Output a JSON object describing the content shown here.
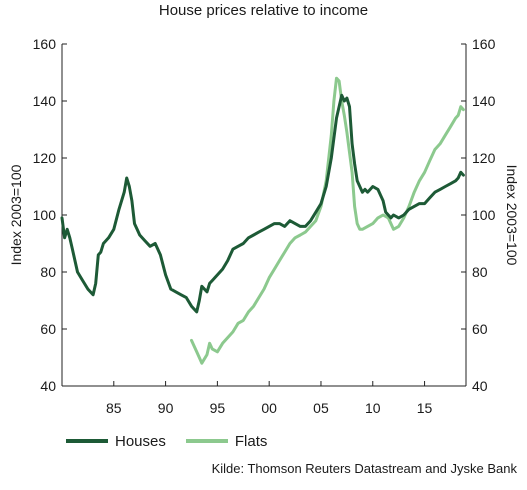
{
  "chart_data": {
    "type": "line",
    "title": "House prices relative to income",
    "ylabel_left": "Index 2003=100",
    "ylabel_right": "Index 2003=100",
    "source": "Kilde: Thomson Reuters Datastream and Jyske Bank",
    "xlim": [
      1980,
      2019
    ],
    "ylim": [
      40,
      160
    ],
    "x_ticks": [
      {
        "value": 1985,
        "label": "85"
      },
      {
        "value": 1990,
        "label": "90"
      },
      {
        "value": 1995,
        "label": "95"
      },
      {
        "value": 2000,
        "label": "00"
      },
      {
        "value": 2005,
        "label": "05"
      },
      {
        "value": 2010,
        "label": "10"
      },
      {
        "value": 2015,
        "label": "15"
      }
    ],
    "y_ticks": [
      40,
      60,
      80,
      100,
      120,
      140,
      160
    ],
    "grid": false,
    "legend_position": "bottom-left",
    "series": [
      {
        "name": "Houses",
        "color": "#1d5a36",
        "x": [
          1980.0,
          1980.25,
          1980.5,
          1980.75,
          1981.0,
          1981.5,
          1982.0,
          1982.5,
          1983.0,
          1983.25,
          1983.5,
          1983.75,
          1984.0,
          1984.5,
          1985.0,
          1985.5,
          1986.0,
          1986.25,
          1986.5,
          1986.75,
          1987.0,
          1987.25,
          1987.5,
          1988.0,
          1988.5,
          1989.0,
          1989.5,
          1990.0,
          1990.5,
          1991.0,
          1991.5,
          1992.0,
          1992.5,
          1993.0,
          1993.25,
          1993.5,
          1994.0,
          1994.25,
          1994.5,
          1995.0,
          1995.5,
          1996.0,
          1996.5,
          1997.0,
          1997.5,
          1998.0,
          1998.5,
          1999.0,
          1999.5,
          2000.0,
          2000.5,
          2001.0,
          2001.5,
          2002.0,
          2002.5,
          2003.0,
          2003.5,
          2004.0,
          2004.5,
          2005.0,
          2005.5,
          2006.0,
          2006.5,
          2007.0,
          2007.25,
          2007.5,
          2007.75,
          2008.0,
          2008.25,
          2008.5,
          2008.75,
          2009.0,
          2009.25,
          2009.5,
          2010.0,
          2010.5,
          2011.0,
          2011.25,
          2011.5,
          2011.75,
          2012.0,
          2012.5,
          2013.0,
          2013.5,
          2014.0,
          2014.5,
          2015.0,
          2015.5,
          2016.0,
          2016.5,
          2017.0,
          2017.5,
          2018.0,
          2018.25,
          2018.5,
          2018.75
        ],
        "values": [
          99,
          92,
          95,
          92,
          88,
          80,
          77,
          74,
          72,
          76,
          86,
          87,
          90,
          92,
          95,
          102,
          108,
          113,
          110,
          105,
          97,
          95,
          93,
          91,
          89,
          90,
          86,
          79,
          74,
          73,
          72,
          71,
          68,
          66,
          70,
          75,
          73,
          76,
          77,
          79,
          81,
          84,
          88,
          89,
          90,
          92,
          93,
          94,
          95,
          96,
          97,
          97,
          96,
          98,
          97,
          96,
          96,
          98,
          101,
          104,
          110,
          120,
          134,
          142,
          140,
          141,
          138,
          125,
          118,
          112,
          110,
          108,
          109,
          108,
          110,
          109,
          105,
          101,
          100,
          99,
          100,
          99,
          100,
          102,
          103,
          104,
          104,
          106,
          108,
          109,
          110,
          111,
          112,
          113,
          115,
          114
        ]
      },
      {
        "name": "Flats",
        "color": "#8cc98e",
        "x": [
          1992.5,
          1993.0,
          1993.25,
          1993.5,
          1994.0,
          1994.25,
          1994.5,
          1995.0,
          1995.5,
          1996.0,
          1996.5,
          1997.0,
          1997.5,
          1998.0,
          1998.5,
          1999.0,
          1999.5,
          2000.0,
          2000.5,
          2001.0,
          2001.5,
          2002.0,
          2002.5,
          2003.0,
          2003.5,
          2004.0,
          2004.5,
          2005.0,
          2005.5,
          2006.0,
          2006.25,
          2006.5,
          2006.75,
          2007.0,
          2007.25,
          2007.5,
          2007.75,
          2008.0,
          2008.25,
          2008.5,
          2008.75,
          2009.0,
          2009.5,
          2010.0,
          2010.5,
          2011.0,
          2011.5,
          2012.0,
          2012.5,
          2013.0,
          2013.5,
          2014.0,
          2014.5,
          2015.0,
          2015.5,
          2016.0,
          2016.5,
          2017.0,
          2017.5,
          2018.0,
          2018.25,
          2018.5,
          2018.75
        ],
        "values": [
          56,
          52,
          50,
          48,
          51,
          55,
          53,
          52,
          55,
          57,
          59,
          62,
          63,
          66,
          68,
          71,
          74,
          78,
          81,
          84,
          87,
          90,
          92,
          93,
          94,
          96,
          98,
          103,
          112,
          128,
          140,
          148,
          147,
          140,
          135,
          129,
          122,
          115,
          103,
          97,
          95,
          95,
          96,
          97,
          99,
          100,
          99,
          95,
          96,
          99,
          103,
          108,
          112,
          115,
          119,
          123,
          125,
          128,
          131,
          134,
          135,
          138,
          137
        ]
      }
    ]
  }
}
